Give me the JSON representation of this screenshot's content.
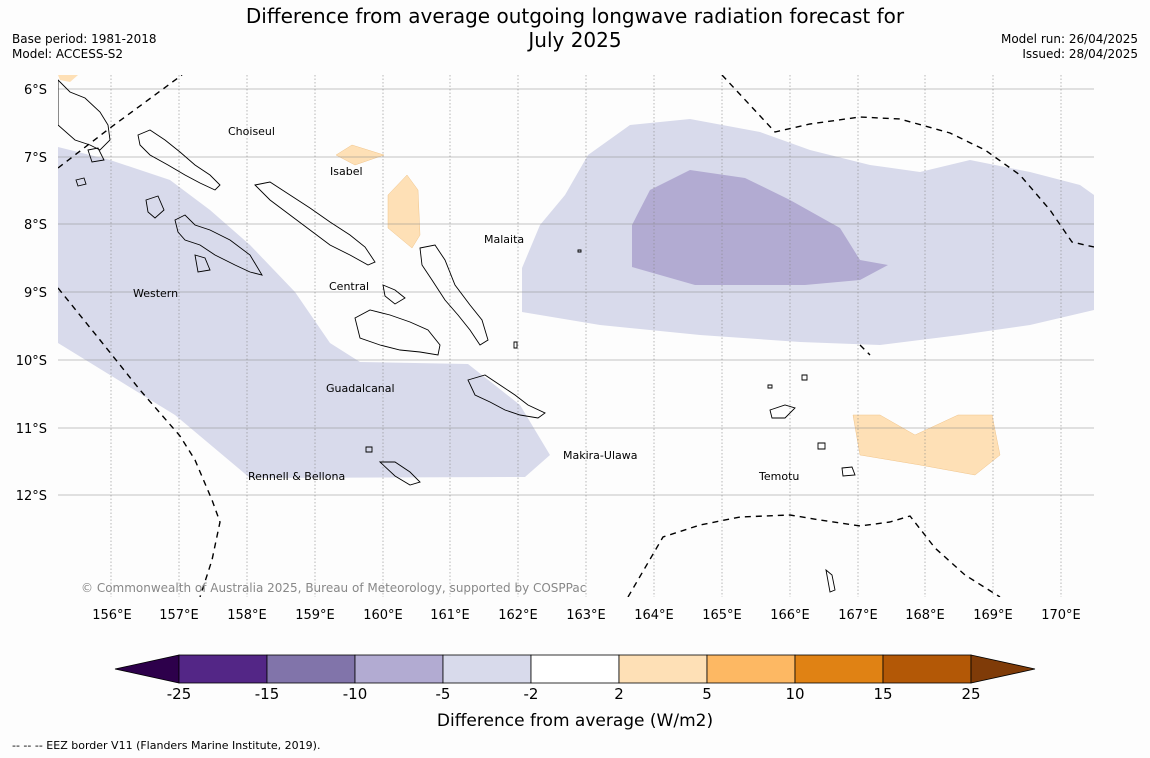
{
  "header": {
    "title_line1": "Difference from average outgoing longwave radiation forecast for",
    "title_line2": "July 2025",
    "base_period": "Base period: 1981-2018",
    "model": "Model: ACCESS-S2",
    "model_run": "Model run: 26/04/2025",
    "issued": "Issued: 28/04/2025"
  },
  "map": {
    "lat_labels": [
      "6°S",
      "7°S",
      "8°S",
      "9°S",
      "10°S",
      "11°S",
      "12°S"
    ],
    "lon_labels": [
      "156°E",
      "157°E",
      "158°E",
      "159°E",
      "160°E",
      "161°E",
      "162°E",
      "163°E",
      "164°E",
      "165°E",
      "166°E",
      "167°E",
      "168°E",
      "169°E",
      "170°E"
    ],
    "provinces": [
      "Choiseul",
      "Isabel",
      "Malaita",
      "Western",
      "Central",
      "Guadalcanal",
      "Makira-Ulawa",
      "Rennell & Bellona",
      "Temotu"
    ],
    "copyright": "© Commonwealth of Australia 2025, Bureau of Meteorology, supported by COSPPac",
    "colors": {
      "neg_25_15": "#532686",
      "neg_15_10": "#8174aa",
      "neg_10_5": "#b2abd2",
      "neg_5_2": "#d8daeb",
      "pos_2_5": "#fee0b6",
      "pos_5_10": "#fdb863",
      "pos_10_15": "#e08214",
      "pos_15_25": "#b35806",
      "below_min": "#2d004b",
      "above_max": "#7f3b08"
    }
  },
  "legend": {
    "ticks": [
      "-25",
      "-15",
      "-10",
      "-5",
      "-2",
      "2",
      "5",
      "10",
      "15",
      "25"
    ],
    "label": "Difference from average (W/m2)"
  },
  "footer": {
    "eez_note": "--  --  -- EEZ border V11 (Flanders Marine Institute, 2019)."
  }
}
